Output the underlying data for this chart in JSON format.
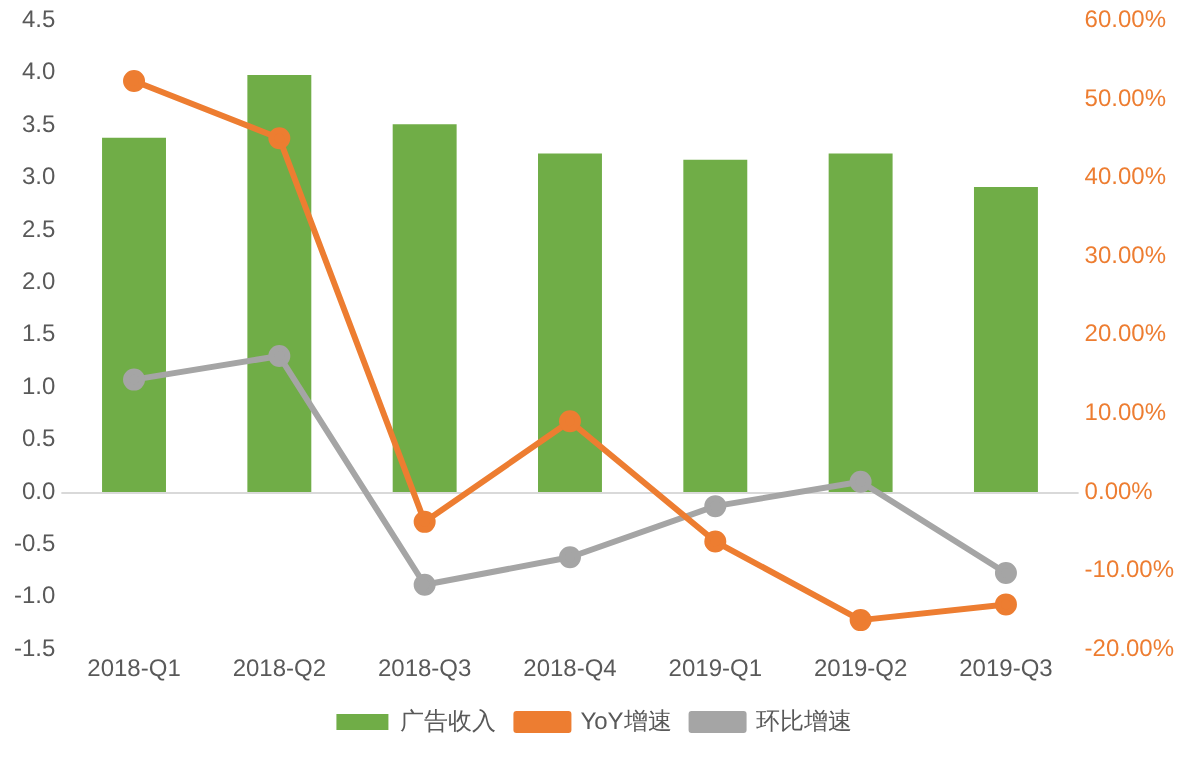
{
  "chart_data": {
    "type": "bar",
    "categories": [
      "2018-Q1",
      "2018-Q2",
      "2018-Q3",
      "2018-Q4",
      "2019-Q1",
      "2019-Q2",
      "2019-Q3"
    ],
    "series": [
      {
        "name": "广告收入",
        "color": "#70ad47",
        "values": [
          3.38,
          3.98,
          3.51,
          3.23,
          3.17,
          3.23,
          2.91
        ]
      },
      {
        "name": "YoY增速",
        "type": "line",
        "axis": "y2",
        "color": "#ed7d31",
        "values": [
          52.3,
          45,
          -3.8,
          9,
          -6.3,
          -16.3,
          -14.3
        ]
      },
      {
        "name": "环比增速",
        "type": "line",
        "axis": "y2",
        "color": "#a5a5a5",
        "values": [
          14.3,
          17.3,
          -11.8,
          -8.3,
          -1.8,
          1.3,
          -10.3
        ]
      }
    ],
    "ylim": [
      -1.5,
      4.5
    ],
    "yticks": [
      {
        "value": -1.5,
        "label": "-1.5"
      },
      {
        "value": -1,
        "label": "-1.0"
      },
      {
        "value": -0.5,
        "label": "-0.5"
      },
      {
        "value": 0,
        "label": "0.0"
      },
      {
        "value": 0.5,
        "label": "0.5"
      },
      {
        "value": 1,
        "label": "1.0"
      },
      {
        "value": 1.5,
        "label": "1.5"
      },
      {
        "value": 2,
        "label": "2.0"
      },
      {
        "value": 2.5,
        "label": "2.5"
      },
      {
        "value": 3,
        "label": "3.0"
      },
      {
        "value": 3.5,
        "label": "3.5"
      },
      {
        "value": 4,
        "label": "4.0"
      },
      {
        "value": 4.5,
        "label": "4.5"
      }
    ],
    "y2lim": [
      -20,
      60
    ],
    "y2ticks": [
      {
        "value": -20,
        "label": "-20.00%"
      },
      {
        "value": -10,
        "label": "-10.00%"
      },
      {
        "value": 0,
        "label": "0.00%"
      },
      {
        "value": 10,
        "label": "10.00%"
      },
      {
        "value": 20,
        "label": "20.00%"
      },
      {
        "value": 30,
        "label": "30.00%"
      },
      {
        "value": 40,
        "label": "40.00%"
      },
      {
        "value": 50,
        "label": "50.00%"
      },
      {
        "value": 60,
        "label": "60.00%"
      }
    ],
    "ref_lines": [
      {
        "axis": "y",
        "value": 0,
        "color": "#d9d9d9"
      }
    ],
    "grid": false,
    "legend": "bottom",
    "marker": "circle",
    "line_style": "solid"
  }
}
